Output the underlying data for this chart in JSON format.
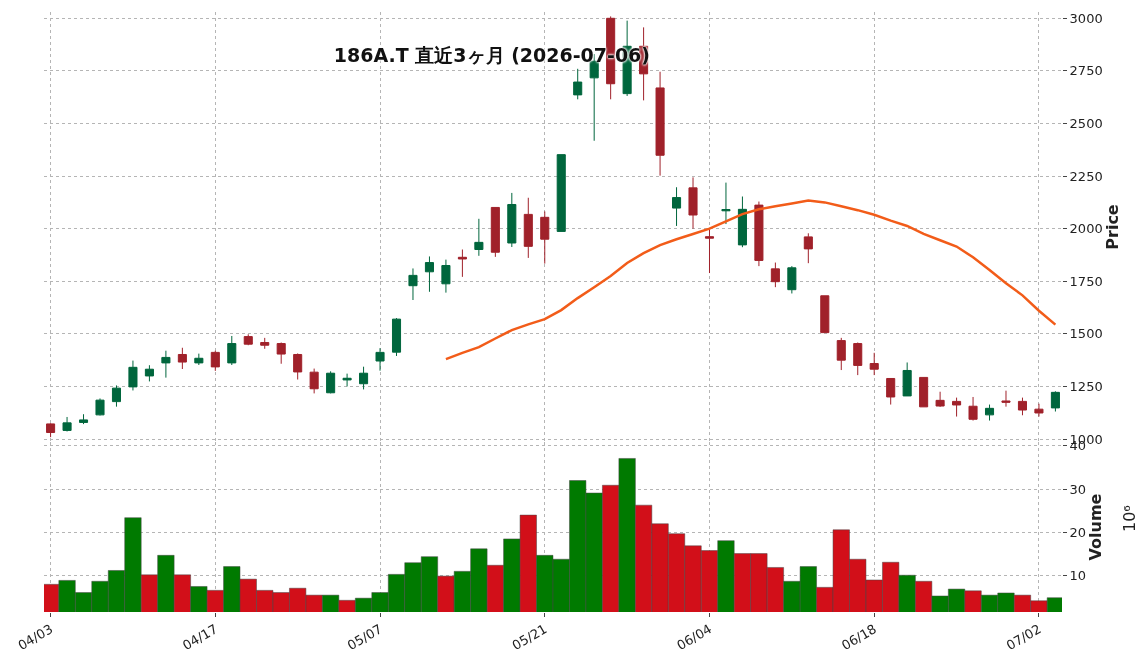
{
  "chart_data": [
    {
      "type": "candlestick",
      "title": "186A.T 直近3ヶ月 (2026-07-06)",
      "ylabel": "Price",
      "categories": [
        null,
        null,
        null,
        null,
        null,
        null,
        null,
        null,
        null,
        null,
        null,
        null,
        null,
        null,
        null,
        null,
        null,
        null,
        null,
        null,
        null,
        null,
        null,
        null,
        null,
        null,
        null,
        null,
        null,
        null,
        null,
        null,
        null,
        null,
        null,
        null,
        null,
        null,
        null,
        null,
        null,
        null,
        null,
        null,
        null,
        null,
        null,
        null,
        null,
        null,
        null,
        null,
        null,
        null,
        null,
        null,
        null,
        null,
        null,
        null,
        null,
        null
      ],
      "ohlc": [
        [
          1072,
          1075,
          1009,
          1031
        ],
        [
          1041,
          1105,
          1036,
          1077
        ],
        [
          1079,
          1118,
          1071,
          1091
        ],
        [
          1115,
          1193,
          1112,
          1185
        ],
        [
          1178,
          1255,
          1154,
          1242
        ],
        [
          1248,
          1373,
          1231,
          1341
        ],
        [
          1300,
          1351,
          1274,
          1332
        ],
        [
          1362,
          1420,
          1292,
          1388
        ],
        [
          1402,
          1434,
          1333,
          1366
        ],
        [
          1362,
          1406,
          1352,
          1384
        ],
        [
          1412,
          1420,
          1324,
          1343
        ],
        [
          1362,
          1490,
          1352,
          1454
        ],
        [
          1487,
          1498,
          1446,
          1451
        ],
        [
          1459,
          1481,
          1429,
          1446
        ],
        [
          1454,
          1459,
          1358,
          1404
        ],
        [
          1402,
          1407,
          1283,
          1319
        ],
        [
          1318,
          1335,
          1217,
          1239
        ],
        [
          1220,
          1322,
          1217,
          1313
        ],
        [
          1281,
          1311,
          1250,
          1289
        ],
        [
          1263,
          1344,
          1236,
          1313
        ],
        [
          1371,
          1432,
          1325,
          1412
        ],
        [
          1413,
          1575,
          1395,
          1570
        ],
        [
          1729,
          1811,
          1661,
          1778
        ],
        [
          1795,
          1868,
          1700,
          1839
        ],
        [
          1738,
          1853,
          1696,
          1825
        ],
        [
          1864,
          1901,
          1771,
          1856
        ],
        [
          1901,
          2047,
          1871,
          1935
        ],
        [
          2101,
          2101,
          1866,
          1888
        ],
        [
          1932,
          2170,
          1913,
          2115
        ],
        [
          2068,
          2147,
          1861,
          1916
        ],
        [
          2054,
          2082,
          1834,
          1950
        ],
        [
          1987,
          2352,
          1987,
          2352
        ],
        [
          2636,
          2760,
          2615,
          2697
        ],
        [
          2717,
          2830,
          2418,
          2796
        ],
        [
          3000,
          3009,
          2615,
          2689
        ],
        [
          2642,
          2989,
          2631,
          2867
        ],
        [
          2867,
          2957,
          2610,
          2736
        ],
        [
          2669,
          2746,
          2252,
          2349
        ],
        [
          2098,
          2197,
          2013,
          2148
        ],
        [
          2194,
          2244,
          2000,
          2065
        ],
        [
          1962,
          1997,
          1789,
          1955
        ],
        [
          2085,
          2219,
          2022,
          2091
        ],
        [
          1923,
          2153,
          1912,
          2092
        ],
        [
          2112,
          2129,
          1822,
          1849
        ],
        [
          1809,
          1839,
          1722,
          1748
        ],
        [
          1710,
          1822,
          1692,
          1814
        ],
        [
          1961,
          1978,
          1836,
          1904
        ],
        [
          1681,
          1681,
          1506,
          1506
        ],
        [
          1468,
          1481,
          1328,
          1375
        ],
        [
          1454,
          1459,
          1304,
          1350
        ],
        [
          1359,
          1410,
          1304,
          1332
        ],
        [
          1288,
          1288,
          1164,
          1200
        ],
        [
          1205,
          1364,
          1205,
          1326
        ],
        [
          1293,
          1293,
          1153,
          1153
        ],
        [
          1184,
          1225,
          1153,
          1157
        ],
        [
          1179,
          1197,
          1107,
          1162
        ],
        [
          1156,
          1200,
          1088,
          1094
        ],
        [
          1115,
          1164,
          1088,
          1146
        ],
        [
          1181,
          1230,
          1154,
          1175
        ],
        [
          1179,
          1197,
          1113,
          1138
        ],
        [
          1142,
          1168,
          1107,
          1124
        ],
        [
          1148,
          1227,
          1131,
          1222
        ]
      ],
      "colors": [
        "#a0212a",
        "#00663d",
        "#00663d",
        "#00663d",
        "#00663d",
        "#00663d",
        "#00663d",
        "#00663d",
        "#a0212a",
        "#00663d",
        "#a0212a",
        "#00663d",
        "#a0212a",
        "#a0212a",
        "#a0212a",
        "#a0212a",
        "#a0212a",
        "#00663d",
        "#00663d",
        "#00663d",
        "#00663d",
        "#00663d",
        "#00663d",
        "#00663d",
        "#00663d",
        "#a0212a",
        "#00663d",
        "#a0212a",
        "#00663d",
        "#a0212a",
        "#a0212a",
        "#00663d",
        "#00663d",
        "#00663d",
        "#a0212a",
        "#00663d",
        "#a0212a",
        "#a0212a",
        "#00663d",
        "#a0212a",
        "#a0212a",
        "#00663d",
        "#00663d",
        "#a0212a",
        "#a0212a",
        "#00663d",
        "#a0212a",
        "#a0212a",
        "#a0212a",
        "#a0212a",
        "#a0212a",
        "#a0212a",
        "#00663d",
        "#a0212a",
        "#a0212a",
        "#a0212a",
        "#a0212a",
        "#00663d",
        "#a0212a",
        "#a0212a",
        "#a0212a",
        "#00663d"
      ],
      "series": [
        {
          "type": "line",
          "color": "#f25c19",
          "values": [
            null,
            null,
            null,
            null,
            null,
            null,
            null,
            null,
            null,
            null,
            null,
            null,
            null,
            null,
            null,
            null,
            null,
            null,
            null,
            null,
            null,
            null,
            null,
            null,
            1380,
            1410,
            1437,
            1478,
            1518,
            1545,
            1570,
            1613,
            1670,
            1722,
            1775,
            1837,
            1884,
            1922,
            1950,
            1975,
            2000,
            2035,
            2069,
            2092,
            2107,
            2120,
            2134,
            2125,
            2107,
            2088,
            2066,
            2038,
            2013,
            1975,
            1945,
            1915,
            1864,
            1804,
            1741,
            1683,
            1610,
            1544
          ]
        }
      ],
      "ylim": [
        986,
        3030
      ],
      "yticks": [
        1000,
        1250,
        1500,
        1750,
        2000,
        2250,
        2500,
        2750,
        3000
      ],
      "grid": true,
      "tick_labels": "y"
    },
    {
      "type": "bar",
      "ylabel": "Volume",
      "annotations": [
        "10⁶"
      ],
      "categories": [
        "04/03",
        null,
        null,
        null,
        null,
        null,
        null,
        null,
        null,
        null,
        "04/17",
        null,
        null,
        null,
        null,
        null,
        null,
        null,
        null,
        null,
        "05/07",
        null,
        null,
        null,
        null,
        null,
        null,
        null,
        null,
        null,
        "05/21",
        null,
        null,
        null,
        null,
        null,
        null,
        null,
        null,
        null,
        "06/04",
        null,
        null,
        null,
        null,
        null,
        null,
        null,
        null,
        null,
        "06/18",
        null,
        null,
        null,
        null,
        null,
        null,
        null,
        null,
        null,
        "07/02",
        null
      ],
      "values": [
        8.0,
        8.9,
        6.1,
        8.7,
        11.2,
        23.4,
        10.2,
        14.7,
        10.2,
        7.5,
        6.6,
        12.1,
        9.2,
        6.6,
        6.1,
        7.1,
        5.5,
        5.5,
        4.3,
        4.8,
        6.1,
        10.3,
        13.0,
        14.4,
        9.9,
        11.0,
        16.2,
        12.4,
        18.5,
        24.0,
        14.7,
        13.8,
        32.0,
        29.1,
        30.9,
        37.1,
        26.3,
        22.0,
        19.7,
        16.9,
        15.8,
        18.1,
        15.1,
        15.1,
        11.9,
        8.7,
        12.1,
        7.3,
        20.6,
        13.8,
        9.0,
        13.1,
        10.1,
        8.7,
        5.3,
        6.9,
        6.5,
        5.5,
        6.0,
        5.5,
        4.2,
        4.9
      ],
      "colors": [
        "#d20f19",
        "#007a00",
        "#007a00",
        "#007a00",
        "#007a00",
        "#007a00",
        "#d20f19",
        "#007a00",
        "#d20f19",
        "#007a00",
        "#d20f19",
        "#007a00",
        "#d20f19",
        "#d20f19",
        "#d20f19",
        "#d20f19",
        "#d20f19",
        "#007a00",
        "#d20f19",
        "#007a00",
        "#007a00",
        "#007a00",
        "#007a00",
        "#007a00",
        "#d20f19",
        "#007a00",
        "#007a00",
        "#d20f19",
        "#007a00",
        "#d20f19",
        "#007a00",
        "#007a00",
        "#007a00",
        "#007a00",
        "#d20f19",
        "#007a00",
        "#d20f19",
        "#d20f19",
        "#d20f19",
        "#d20f19",
        "#d20f19",
        "#007a00",
        "#d20f19",
        "#d20f19",
        "#d20f19",
        "#007a00",
        "#007a00",
        "#d20f19",
        "#d20f19",
        "#d20f19",
        "#d20f19",
        "#d20f19",
        "#007a00",
        "#d20f19",
        "#007a00",
        "#007a00",
        "#d20f19",
        "#007a00",
        "#007a00",
        "#d20f19",
        "#d20f19",
        "#007a00"
      ],
      "ylim": [
        1.6,
        40.9
      ],
      "yticks": [
        10,
        20,
        30,
        40
      ],
      "grid": true
    }
  ]
}
